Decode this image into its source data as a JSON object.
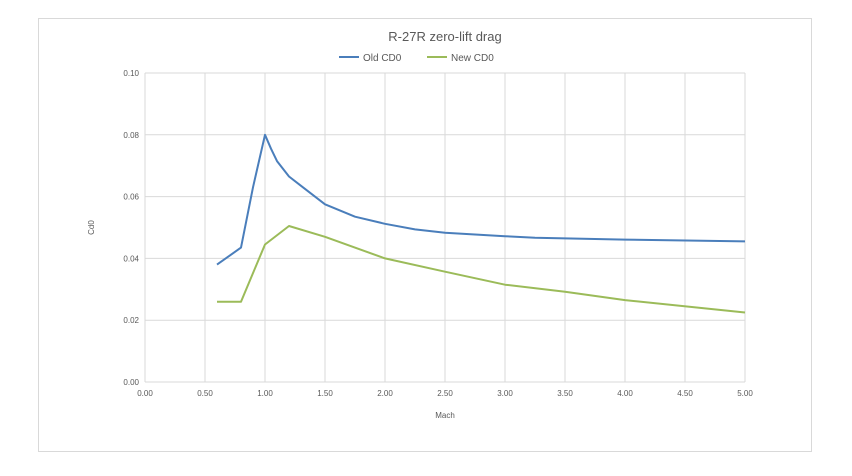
{
  "chart_data": {
    "type": "line",
    "title": "R-27R zero-lift drag",
    "xlabel": "Mach",
    "ylabel": "Cd0",
    "xlim": [
      0,
      5
    ],
    "ylim": [
      0,
      0.1
    ],
    "xticks": [
      "0.00",
      "0.50",
      "1.00",
      "1.50",
      "2.00",
      "2.50",
      "3.00",
      "3.50",
      "4.00",
      "4.50",
      "5.00"
    ],
    "yticks": [
      "0.00",
      "0.02",
      "0.04",
      "0.06",
      "0.08",
      "0.10"
    ],
    "grid": true,
    "legend_position": "top",
    "series": [
      {
        "name": "Old CD0",
        "color": "#4a7ebb",
        "x": [
          0.6,
          0.8,
          0.9,
          1.0,
          1.05,
          1.1,
          1.2,
          1.3,
          1.5,
          1.75,
          2.0,
          2.25,
          2.5,
          3.0,
          3.25,
          4.0,
          5.0
        ],
        "y": [
          0.038,
          0.0435,
          0.063,
          0.08,
          0.0755,
          0.0715,
          0.0665,
          0.0635,
          0.0575,
          0.0535,
          0.0512,
          0.0494,
          0.0483,
          0.0472,
          0.0467,
          0.0461,
          0.0455
        ]
      },
      {
        "name": "New CD0",
        "color": "#9bbb59",
        "x": [
          0.6,
          0.8,
          1.0,
          1.2,
          1.5,
          2.0,
          2.5,
          3.0,
          3.5,
          4.0,
          5.0
        ],
        "y": [
          0.026,
          0.026,
          0.0445,
          0.0505,
          0.047,
          0.04,
          0.0357,
          0.0315,
          0.0292,
          0.0265,
          0.0225
        ]
      }
    ]
  }
}
